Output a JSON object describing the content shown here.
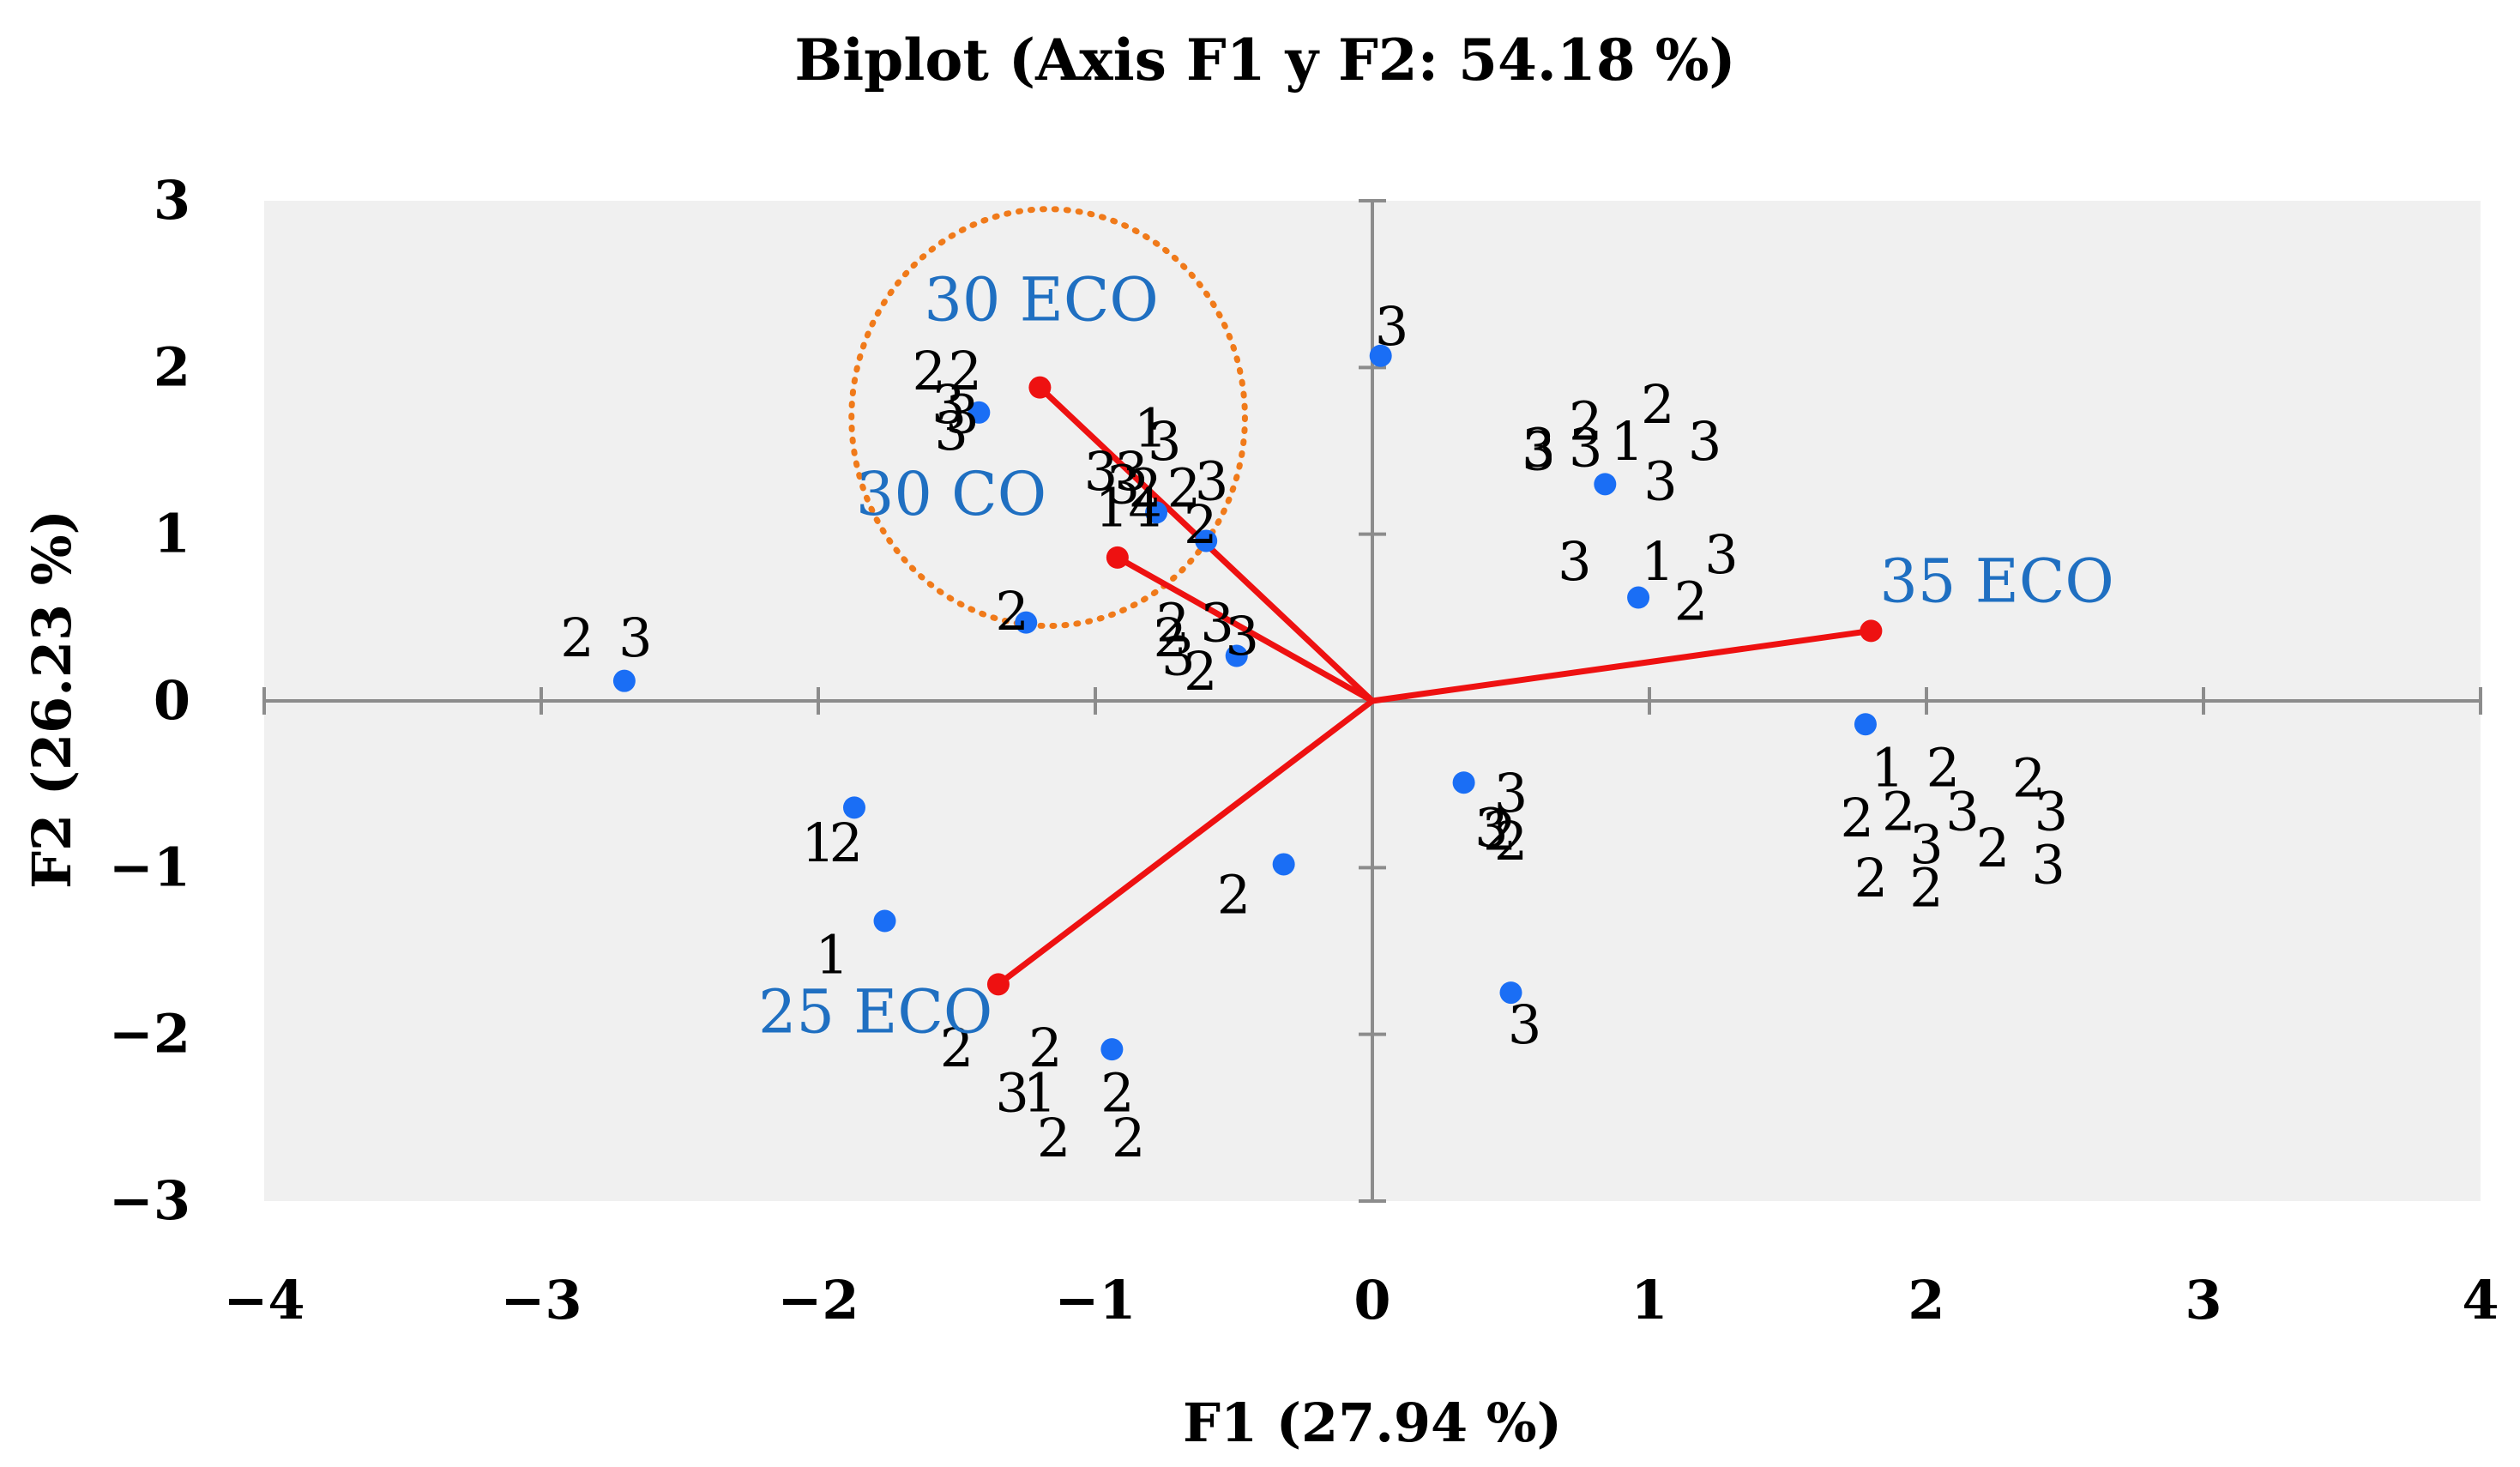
{
  "chart_data": {
    "type": "scatter",
    "title": "Biplot (Axis F1 y F2: 54.18 %)",
    "xlabel": "F1 (27.94 %)",
    "ylabel": "F2 (26.23 %)",
    "xlim": [
      -4,
      4
    ],
    "ylim": [
      -3,
      3
    ],
    "xticks": [
      "−4",
      "−3",
      "−2",
      "−1",
      "0",
      "1",
      "2",
      "3",
      "4"
    ],
    "yticks": [
      "−3",
      "−2",
      "−1",
      "0",
      "1",
      "2",
      "3"
    ],
    "background_color": "#f0f0f0",
    "point_color": "#1a6ef5",
    "vector_color": "#ee1111",
    "ellipse_color": "#f07a1a",
    "vector_label_color": "#1f6fc1",
    "points": [
      {
        "x": -2.7,
        "y": 0.12
      },
      {
        "x": -1.87,
        "y": -0.64
      },
      {
        "x": -1.76,
        "y": -1.32
      },
      {
        "x": -1.42,
        "y": 1.73
      },
      {
        "x": -1.25,
        "y": 0.47
      },
      {
        "x": -0.94,
        "y": -2.09
      },
      {
        "x": -0.78,
        "y": 1.13
      },
      {
        "x": -0.6,
        "y": 0.96
      },
      {
        "x": -0.49,
        "y": 0.27
      },
      {
        "x": -0.32,
        "y": -0.98
      },
      {
        "x": 0.03,
        "y": 2.07
      },
      {
        "x": 0.33,
        "y": -0.49
      },
      {
        "x": 0.5,
        "y": -1.75
      },
      {
        "x": 0.84,
        "y": 1.3
      },
      {
        "x": 0.96,
        "y": 0.62
      },
      {
        "x": 1.78,
        "y": -0.14
      }
    ],
    "vectors": [
      {
        "name": "30 ECO",
        "x": -1.2,
        "y": 1.88
      },
      {
        "name": "30 CO",
        "x": -0.92,
        "y": 0.86
      },
      {
        "name": "35 ECO",
        "x": 1.8,
        "y": 0.42
      },
      {
        "name": "25 ECO",
        "x": -1.35,
        "y": -1.7
      }
    ],
    "obs_labels": [
      {
        "text": "2",
        "x": -2.87,
        "y": 0.38
      },
      {
        "text": "3",
        "x": -2.66,
        "y": 0.38
      },
      {
        "text": "1",
        "x": -2.0,
        "y": -0.85
      },
      {
        "text": "2",
        "x": -1.9,
        "y": -0.85
      },
      {
        "text": "1",
        "x": -1.95,
        "y": -1.52
      },
      {
        "text": "2",
        "x": -1.5,
        "y": -2.08
      },
      {
        "text": "2",
        "x": -1.18,
        "y": -2.08
      },
      {
        "text": "3",
        "x": -1.3,
        "y": -2.35
      },
      {
        "text": "1",
        "x": -1.2,
        "y": -2.35
      },
      {
        "text": "2",
        "x": -1.15,
        "y": -2.62
      },
      {
        "text": "2",
        "x": -0.92,
        "y": -2.35
      },
      {
        "text": "2",
        "x": -0.88,
        "y": -2.62
      },
      {
        "text": "2",
        "x": -1.6,
        "y": 1.98
      },
      {
        "text": "2",
        "x": -1.47,
        "y": 1.98
      },
      {
        "text": "3",
        "x": -1.53,
        "y": 1.78
      },
      {
        "text": "3",
        "x": -1.48,
        "y": 1.72
      },
      {
        "text": "3",
        "x": -1.52,
        "y": 1.62
      },
      {
        "text": "2",
        "x": -1.3,
        "y": 0.54
      },
      {
        "text": "1",
        "x": -0.8,
        "y": 1.64
      },
      {
        "text": "3",
        "x": -0.75,
        "y": 1.56
      },
      {
        "text": "3",
        "x": -0.98,
        "y": 1.38
      },
      {
        "text": "3",
        "x": -0.87,
        "y": 1.38
      },
      {
        "text": "3",
        "x": -0.58,
        "y": 1.32
      },
      {
        "text": "2",
        "x": -0.82,
        "y": 1.28
      },
      {
        "text": "3",
        "x": -0.9,
        "y": 1.3
      },
      {
        "text": "2",
        "x": -0.68,
        "y": 1.28
      },
      {
        "text": "1",
        "x": -0.94,
        "y": 1.16
      },
      {
        "text": "4",
        "x": -0.82,
        "y": 1.16
      },
      {
        "text": "2",
        "x": -0.62,
        "y": 1.06
      },
      {
        "text": "2",
        "x": -0.72,
        "y": 0.47
      },
      {
        "text": "3",
        "x": -0.56,
        "y": 0.47
      },
      {
        "text": "3",
        "x": -0.47,
        "y": 0.39
      },
      {
        "text": "2",
        "x": -0.73,
        "y": 0.38
      },
      {
        "text": "3",
        "x": -0.7,
        "y": 0.27
      },
      {
        "text": "2",
        "x": -0.62,
        "y": 0.18
      },
      {
        "text": "3",
        "x": 0.07,
        "y": 2.25
      },
      {
        "text": "2",
        "x": 0.77,
        "y": 1.68
      },
      {
        "text": "2",
        "x": 1.03,
        "y": 1.78
      },
      {
        "text": "3",
        "x": 0.6,
        "y": 1.52
      },
      {
        "text": "3",
        "x": 0.77,
        "y": 1.52
      },
      {
        "text": "1",
        "x": 0.92,
        "y": 1.56
      },
      {
        "text": "3",
        "x": 1.2,
        "y": 1.56
      },
      {
        "text": "3",
        "x": 1.04,
        "y": 1.32
      },
      {
        "text": "3",
        "x": 0.73,
        "y": 0.84
      },
      {
        "text": "1",
        "x": 1.03,
        "y": 0.84
      },
      {
        "text": "3",
        "x": 1.26,
        "y": 0.88
      },
      {
        "text": "2",
        "x": 1.15,
        "y": 0.6
      },
      {
        "text": "3",
        "x": 0.5,
        "y": -0.55
      },
      {
        "text": "3",
        "x": 0.43,
        "y": -0.76
      },
      {
        "text": "2",
        "x": 0.46,
        "y": -0.78
      },
      {
        "text": "2",
        "x": 0.5,
        "y": -0.84
      },
      {
        "text": "3",
        "x": 0.6,
        "y": 1.5
      },
      {
        "text": "3",
        "x": 0.55,
        "y": -1.94
      },
      {
        "text": "2",
        "x": -0.5,
        "y": -1.16
      },
      {
        "text": "1",
        "x": 1.86,
        "y": -0.4
      },
      {
        "text": "2",
        "x": 2.06,
        "y": -0.4
      },
      {
        "text": "2",
        "x": 2.37,
        "y": -0.46
      },
      {
        "text": "2",
        "x": 1.75,
        "y": -0.7
      },
      {
        "text": "2",
        "x": 1.9,
        "y": -0.66
      },
      {
        "text": "3",
        "x": 2.13,
        "y": -0.66
      },
      {
        "text": "3",
        "x": 2.45,
        "y": -0.66
      },
      {
        "text": "3",
        "x": 2.0,
        "y": -0.86
      },
      {
        "text": "2",
        "x": 2.24,
        "y": -0.88
      },
      {
        "text": "3",
        "x": 2.44,
        "y": -0.98
      },
      {
        "text": "2",
        "x": 1.8,
        "y": -1.06
      },
      {
        "text": "2",
        "x": 2.0,
        "y": -1.12
      }
    ]
  }
}
